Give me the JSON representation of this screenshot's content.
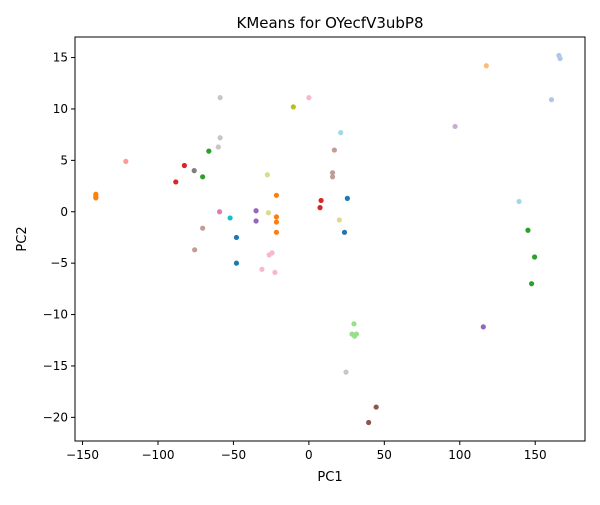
{
  "chart_data": {
    "type": "scatter",
    "title": "KMeans for OYecfV3ubP8",
    "xlabel": "PC1",
    "ylabel": "PC2",
    "xlim": [
      -155,
      183
    ],
    "ylim": [
      -22.3,
      17
    ],
    "xticks": [
      -150,
      -100,
      -50,
      0,
      50,
      100,
      150
    ],
    "yticks": [
      -20,
      -15,
      -10,
      -5,
      0,
      5,
      10,
      15
    ],
    "xtick_labels": [
      "−150",
      "−100",
      "−50",
      "0",
      "50",
      "100",
      "150"
    ],
    "ytick_labels": [
      "−20",
      "−15",
      "−10",
      "−5",
      "0",
      "5",
      "10",
      "15"
    ],
    "grid": false,
    "legend": "none",
    "points": [
      {
        "x": -141.2,
        "y": 1.7,
        "color": "#ff7f0e"
      },
      {
        "x": -141.2,
        "y": 1.5,
        "color": "#ff7f0e"
      },
      {
        "x": -141.2,
        "y": 1.35,
        "color": "#ff7f0e"
      },
      {
        "x": -121.3,
        "y": 4.9,
        "color": "#ff9896"
      },
      {
        "x": -88.2,
        "y": 2.9,
        "color": "#d62728"
      },
      {
        "x": -82.5,
        "y": 4.5,
        "color": "#d62728"
      },
      {
        "x": -76.0,
        "y": 4.0,
        "color": "#7f7f7f"
      },
      {
        "x": -70.4,
        "y": 3.4,
        "color": "#2ca02c"
      },
      {
        "x": -66.3,
        "y": 5.9,
        "color": "#2ca02c"
      },
      {
        "x": -60.0,
        "y": 6.3,
        "color": "#c7c7c7"
      },
      {
        "x": -58.8,
        "y": 7.2,
        "color": "#c7c7c7"
      },
      {
        "x": -58.8,
        "y": 11.1,
        "color": "#c7c7c7"
      },
      {
        "x": -59.2,
        "y": 0.0,
        "color": "#e377c2"
      },
      {
        "x": -52.2,
        "y": -0.6,
        "color": "#17becf"
      },
      {
        "x": -70.4,
        "y": -1.6,
        "color": "#c49c94"
      },
      {
        "x": -75.7,
        "y": -3.7,
        "color": "#c49c94"
      },
      {
        "x": -48.0,
        "y": -2.5,
        "color": "#1f77b4"
      },
      {
        "x": -48.0,
        "y": -5.0,
        "color": "#1f77b4"
      },
      {
        "x": -35.0,
        "y": 0.1,
        "color": "#9467bd"
      },
      {
        "x": -35.0,
        "y": -0.9,
        "color": "#9467bd"
      },
      {
        "x": -27.5,
        "y": 3.6,
        "color": "#dbdb8d"
      },
      {
        "x": -26.8,
        "y": -0.1,
        "color": "#dbdb8d"
      },
      {
        "x": -21.5,
        "y": 1.6,
        "color": "#ff7f0e"
      },
      {
        "x": -21.5,
        "y": -0.5,
        "color": "#ff7f0e"
      },
      {
        "x": -21.5,
        "y": -1.0,
        "color": "#ff7f0e"
      },
      {
        "x": -21.5,
        "y": -2.0,
        "color": "#ff7f0e"
      },
      {
        "x": -31.1,
        "y": -5.6,
        "color": "#f7b6d2"
      },
      {
        "x": -26.3,
        "y": -4.2,
        "color": "#f7b6d2"
      },
      {
        "x": -24.4,
        "y": -4.0,
        "color": "#f7b6d2"
      },
      {
        "x": -22.5,
        "y": -5.9,
        "color": "#f7b6d2"
      },
      {
        "x": -10.3,
        "y": 10.2,
        "color": "#bcbd22"
      },
      {
        "x": 0.0,
        "y": 11.1,
        "color": "#f7b6d2"
      },
      {
        "x": 8.1,
        "y": 1.1,
        "color": "#d62728"
      },
      {
        "x": 7.4,
        "y": 0.4,
        "color": "#d62728"
      },
      {
        "x": 15.7,
        "y": 3.4,
        "color": "#c49c94"
      },
      {
        "x": 15.7,
        "y": 3.8,
        "color": "#c49c94"
      },
      {
        "x": 16.9,
        "y": 6.0,
        "color": "#c49c94"
      },
      {
        "x": 21.1,
        "y": 7.7,
        "color": "#9edae5"
      },
      {
        "x": 20.2,
        "y": -0.8,
        "color": "#dbdb8d"
      },
      {
        "x": 23.6,
        "y": -2.0,
        "color": "#1f77b4"
      },
      {
        "x": 25.5,
        "y": 1.3,
        "color": "#1f77b4"
      },
      {
        "x": 28.6,
        "y": -11.9,
        "color": "#98df8a"
      },
      {
        "x": 29.9,
        "y": -10.9,
        "color": "#98df8a"
      },
      {
        "x": 30.3,
        "y": -12.1,
        "color": "#98df8a"
      },
      {
        "x": 31.5,
        "y": -11.9,
        "color": "#98df8a"
      },
      {
        "x": 24.6,
        "y": -15.6,
        "color": "#c7c7c7"
      },
      {
        "x": 44.6,
        "y": -19.0,
        "color": "#8c564b"
      },
      {
        "x": 39.6,
        "y": -20.5,
        "color": "#8c564b"
      },
      {
        "x": 96.9,
        "y": 8.3,
        "color": "#c5b0d5"
      },
      {
        "x": 115.6,
        "y": -11.2,
        "color": "#9467bd"
      },
      {
        "x": 117.6,
        "y": 14.2,
        "color": "#ffbb78"
      },
      {
        "x": 139.3,
        "y": 1.0,
        "color": "#9edae5"
      },
      {
        "x": 145.2,
        "y": -1.8,
        "color": "#2ca02c"
      },
      {
        "x": 149.6,
        "y": -4.4,
        "color": "#2ca02c"
      },
      {
        "x": 147.6,
        "y": -7.0,
        "color": "#2ca02c"
      },
      {
        "x": 160.8,
        "y": 10.9,
        "color": "#aec7e8"
      },
      {
        "x": 165.7,
        "y": 15.2,
        "color": "#aec7e8"
      },
      {
        "x": 166.5,
        "y": 14.9,
        "color": "#aec7e8"
      }
    ]
  }
}
